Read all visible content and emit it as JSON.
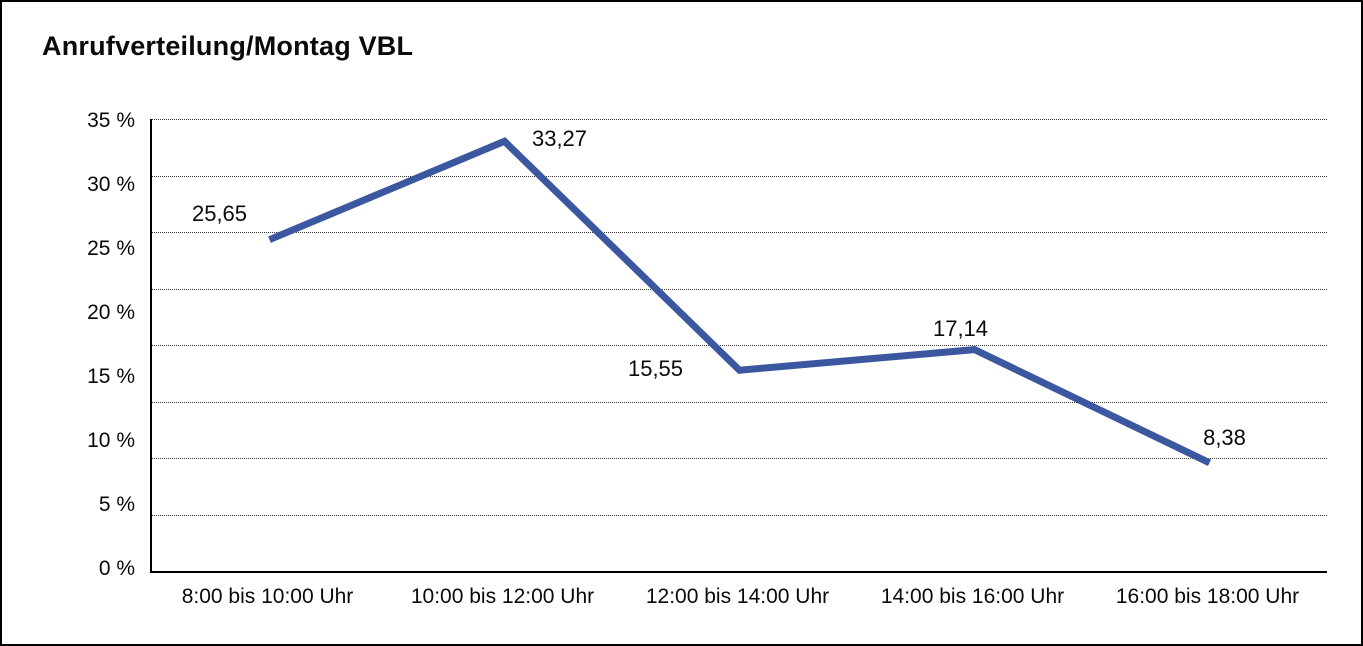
{
  "chart_data": {
    "type": "line",
    "title": "Anrufverteilung/Montag VBL",
    "categories": [
      "8:00 bis 10:00 Uhr",
      "10:00 bis 12:00 Uhr",
      "12:00 bis 14:00 Uhr",
      "14:00 bis 16:00 Uhr",
      "16:00 bis 18:00 Uhr"
    ],
    "values": [
      25.65,
      33.27,
      15.55,
      17.14,
      8.38
    ],
    "data_labels": [
      "25,65",
      "33,27",
      "15,55",
      "17,14",
      "8,38"
    ],
    "y_tick_labels": [
      "35 %",
      "30 %",
      "25 %",
      "20 %",
      "15 %",
      "10 %",
      "5 %",
      "0 %"
    ],
    "ylim": [
      0,
      35
    ],
    "xlabel": "",
    "ylabel": "",
    "legend": "none",
    "grid": "horizontal-dotted",
    "gridline_count": 8,
    "line_color": "#3B579F",
    "text_color": "#0a0a0a",
    "background_color": "#ffffff"
  }
}
